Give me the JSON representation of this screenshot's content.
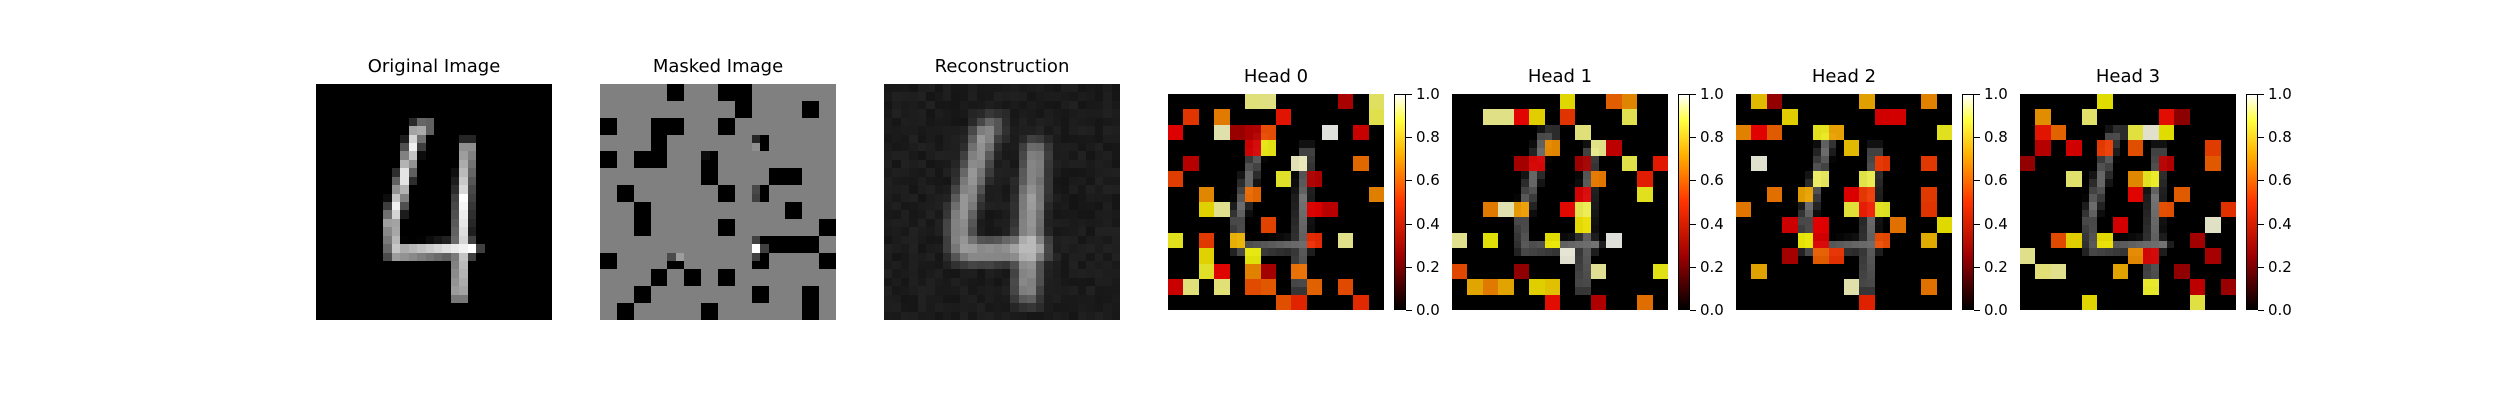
{
  "panels": [
    {
      "id": "original",
      "title": "Original Image"
    },
    {
      "id": "masked",
      "title": "Masked Image"
    },
    {
      "id": "reconstruction",
      "title": "Reconstruction"
    },
    {
      "id": "head0",
      "title": "Head 0"
    },
    {
      "id": "head1",
      "title": "Head 1"
    },
    {
      "id": "head2",
      "title": "Head 2"
    },
    {
      "id": "head3",
      "title": "Head 3"
    }
  ],
  "colorbar": {
    "colormap": "hot",
    "range": [
      0,
      1
    ],
    "ticks": [
      "0.0",
      "0.2",
      "0.4",
      "0.6",
      "0.8",
      "1.0"
    ]
  },
  "colors": {
    "background": "#000000",
    "mask_fill": "#808080",
    "stroke": "#ffffff"
  }
}
